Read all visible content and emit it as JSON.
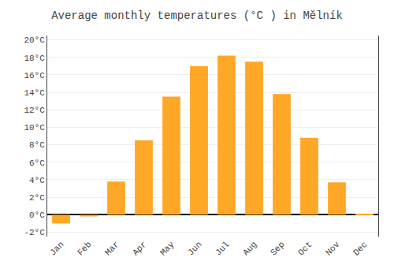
{
  "chart_data": {
    "type": "bar",
    "title": "Average monthly temperatures (°C ) in Mělník",
    "categories": [
      "Jan",
      "Feb",
      "Mar",
      "Apr",
      "May",
      "Jun",
      "Jul",
      "Aug",
      "Sep",
      "Oct",
      "Nov",
      "Dec"
    ],
    "values": [
      -1.0,
      -0.2,
      3.8,
      8.5,
      13.5,
      17.0,
      18.2,
      17.5,
      13.8,
      8.8,
      3.7,
      0.1
    ],
    "color": "#FFA726",
    "ylim": [
      -2.5,
      20.5
    ],
    "yticks": [
      {
        "value": -2,
        "label": "-2°C"
      },
      {
        "value": 0,
        "label": "0°C"
      },
      {
        "value": 2,
        "label": "2°C"
      },
      {
        "value": 4,
        "label": "4°C"
      },
      {
        "value": 6,
        "label": "6°C"
      },
      {
        "value": 8,
        "label": "8°C"
      },
      {
        "value": 10,
        "label": "10°C"
      },
      {
        "value": 12,
        "label": "12°C"
      },
      {
        "value": 14,
        "label": "14°C"
      },
      {
        "value": 16,
        "label": "16°C"
      },
      {
        "value": 18,
        "label": "18°C"
      },
      {
        "value": 20,
        "label": "20°C"
      }
    ],
    "grid": true
  }
}
